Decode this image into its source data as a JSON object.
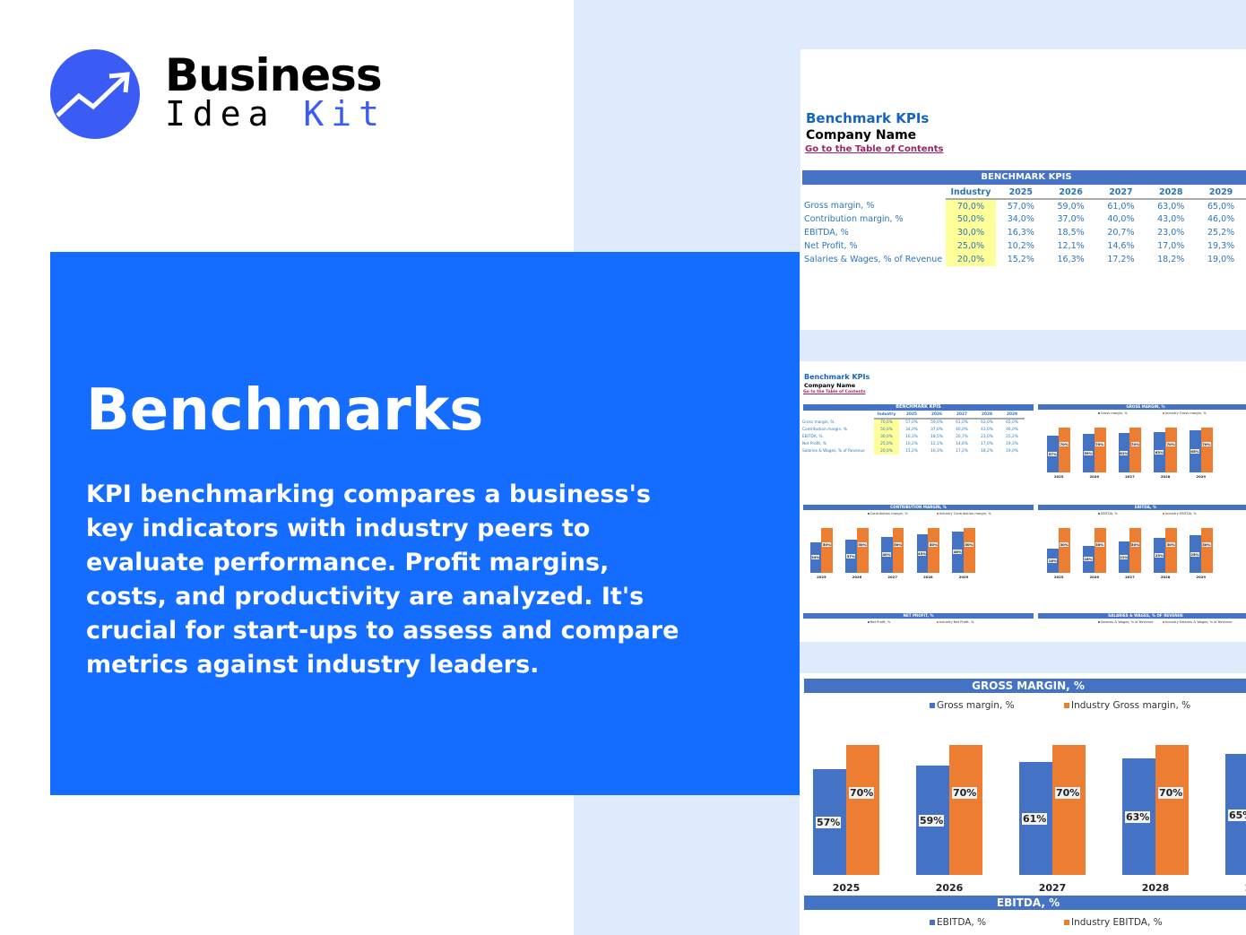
{
  "brand": {
    "line1": "Business",
    "line2a": "Idea",
    "line2b": "Kit",
    "accent": "#3a5cf5"
  },
  "hero": {
    "title": "Benchmarks",
    "text": "KPI benchmarking compares a business's key indicators with industry peers to evaluate performance. Profit margins, costs, and productivity are analyzed. It's crucial for start-ups to assess and compare metrics against industry leaders.",
    "bg": "#146dff"
  },
  "sheet": {
    "title": "Benchmark KPIs",
    "company": "Company Name",
    "link": "Go to the Table of Contents",
    "table_title": "BENCHMARK KPIS",
    "columns": [
      "Industry",
      "2025",
      "2026",
      "2027",
      "2028",
      "2029"
    ],
    "rows": [
      {
        "label": "Gross margin, %",
        "values": [
          "70,0%",
          "57,0%",
          "59,0%",
          "61,0%",
          "63,0%",
          "65,0%"
        ]
      },
      {
        "label": "Contribution margin, %",
        "values": [
          "50,0%",
          "34,0%",
          "37,0%",
          "40,0%",
          "43,0%",
          "46,0%"
        ]
      },
      {
        "label": "EBITDA, %",
        "values": [
          "30,0%",
          "16,3%",
          "18,5%",
          "20,7%",
          "23,0%",
          "25,2%"
        ]
      },
      {
        "label": "Net Profit, %",
        "values": [
          "25,0%",
          "10,2%",
          "12,1%",
          "14,6%",
          "17,0%",
          "19,3%"
        ]
      },
      {
        "label": "Salaries & Wages, % of Revenue",
        "values": [
          "20,0%",
          "15,2%",
          "16,3%",
          "17,2%",
          "18,2%",
          "19,0%"
        ]
      }
    ]
  },
  "chart_data": [
    {
      "type": "bar",
      "title": "GROSS MARGIN, %",
      "categories": [
        "2025",
        "2026",
        "2027",
        "2028",
        "2029"
      ],
      "series": [
        {
          "name": "Gross margin, %",
          "values": [
            57,
            59,
            61,
            63,
            65
          ],
          "labels": [
            "57%",
            "59%",
            "61%",
            "63%",
            "65%"
          ]
        },
        {
          "name": "Industry Gross margin, %",
          "values": [
            70,
            70,
            70,
            70,
            70
          ],
          "labels": [
            "70%",
            "70%",
            "70%",
            "70%",
            "70%"
          ]
        }
      ]
    },
    {
      "type": "bar",
      "title": "CONTRIBUTION MARGIN, %",
      "categories": [
        "2025",
        "2026",
        "2027",
        "2028",
        "2029"
      ],
      "series": [
        {
          "name": "Contribution margin, %",
          "values": [
            34,
            37,
            40,
            43,
            46
          ],
          "labels": [
            "34%",
            "37%",
            "40%",
            "43%",
            "46%"
          ]
        },
        {
          "name": "Industry Contribution margin, %",
          "values": [
            50,
            50,
            50,
            50,
            50
          ],
          "labels": [
            "50%",
            "50%",
            "50%",
            "50%",
            "50%"
          ]
        }
      ]
    },
    {
      "type": "bar",
      "title": "EBITDA, %",
      "categories": [
        "2025",
        "2026",
        "2027",
        "2028",
        "2029"
      ],
      "series": [
        {
          "name": "EBITDA, %",
          "values": [
            16,
            18,
            21,
            23,
            25
          ],
          "labels": [
            "16%",
            "18%",
            "21%",
            "23%",
            "25%"
          ]
        },
        {
          "name": "Industry EBITDA, %",
          "values": [
            30,
            30,
            30,
            30,
            30
          ],
          "labels": [
            "30%",
            "30%",
            "30%",
            "30%",
            "30%"
          ]
        }
      ]
    },
    {
      "type": "bar",
      "title": "NET PROFIT, %",
      "categories": [],
      "series": [
        {
          "name": "Net Profit, %",
          "values": []
        },
        {
          "name": "Industry Net Profit, %",
          "values": []
        }
      ]
    },
    {
      "type": "bar",
      "title": "SALARIES & WAGES, % OF REVENUE",
      "categories": [],
      "series": [
        {
          "name": "Salaries & Wages, % of Revenue",
          "values": []
        },
        {
          "name": "Industry Salaries & Wages, % of Revenue",
          "values": []
        }
      ]
    }
  ],
  "colors": {
    "company": "#4472c4",
    "industry": "#ed7d31",
    "header": "#4472c4",
    "industry_cell": "#ffff99"
  }
}
